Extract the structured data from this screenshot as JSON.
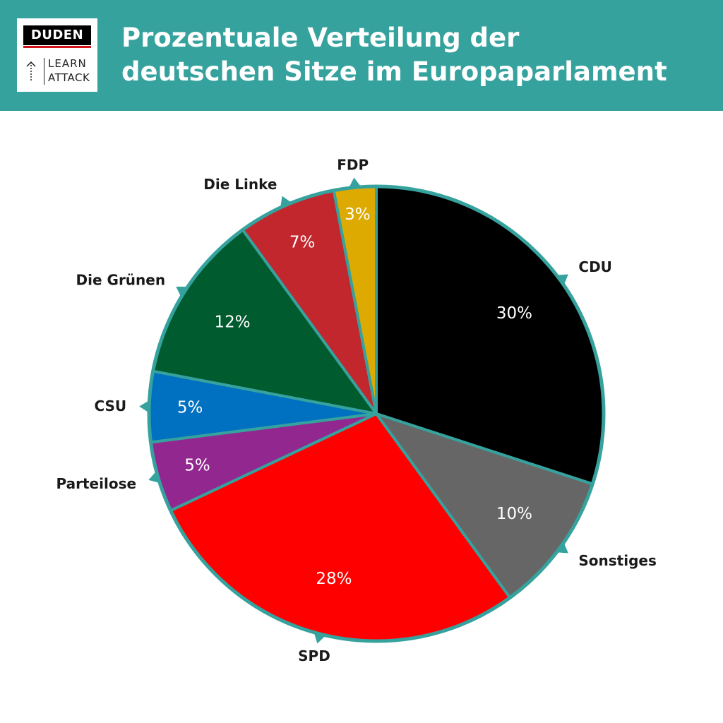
{
  "header": {
    "logo_brand": "DUDEN",
    "logo_line1": "LEARN",
    "logo_line2": "ATTACK",
    "title_line1": "Prozentuale Verteilung der",
    "title_line2": "deutschen Sitze im Europaparlament",
    "background_color": "#36a29e"
  },
  "chart_data": {
    "type": "pie",
    "title": "Prozentuale Verteilung der deutschen Sitze im Europaparlament",
    "value_suffix": "%",
    "start_angle_deg": 0,
    "direction": "clockwise",
    "border_color": "#36a29e",
    "slices": [
      {
        "label": "CDU",
        "value": 30,
        "color": "#000000"
      },
      {
        "label": "Sonstiges",
        "value": 10,
        "color": "#666666"
      },
      {
        "label": "SPD",
        "value": 28,
        "color": "#ff0000"
      },
      {
        "label": "Parteilose",
        "value": 5,
        "color": "#92278f"
      },
      {
        "label": "CSU",
        "value": 5,
        "color": "#0070c0"
      },
      {
        "label": "Die Grünen",
        "value": 12,
        "color": "#005b2e"
      },
      {
        "label": "Die Linke",
        "value": 7,
        "color": "#c1272d"
      },
      {
        "label": "FDP",
        "value": 3,
        "color": "#dcaa00"
      }
    ]
  }
}
